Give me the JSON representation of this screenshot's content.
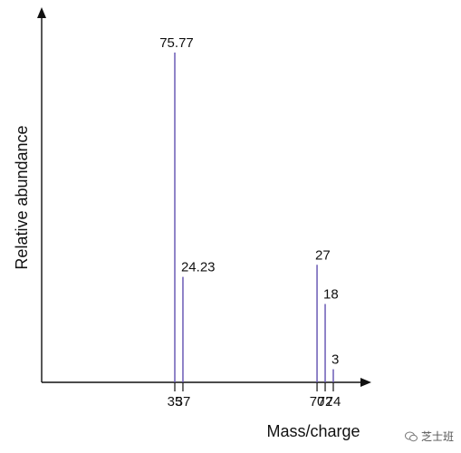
{
  "chart_data": {
    "type": "bar",
    "xlabel": "Mass/charge",
    "ylabel": "Relative abundance",
    "x": [
      35,
      37,
      70,
      72,
      74
    ],
    "values": [
      75.77,
      24.23,
      27,
      18,
      3
    ],
    "data_labels": [
      "75.77",
      "24.23",
      "27",
      "18",
      "3"
    ],
    "tick_labels": [
      "35",
      "37",
      "70",
      "72",
      "74"
    ],
    "grid": false,
    "colors": {
      "stem": "#6b5bb5",
      "axis": "#111111"
    }
  },
  "watermark": {
    "text": "芝士班",
    "icon": "wechat-icon"
  }
}
